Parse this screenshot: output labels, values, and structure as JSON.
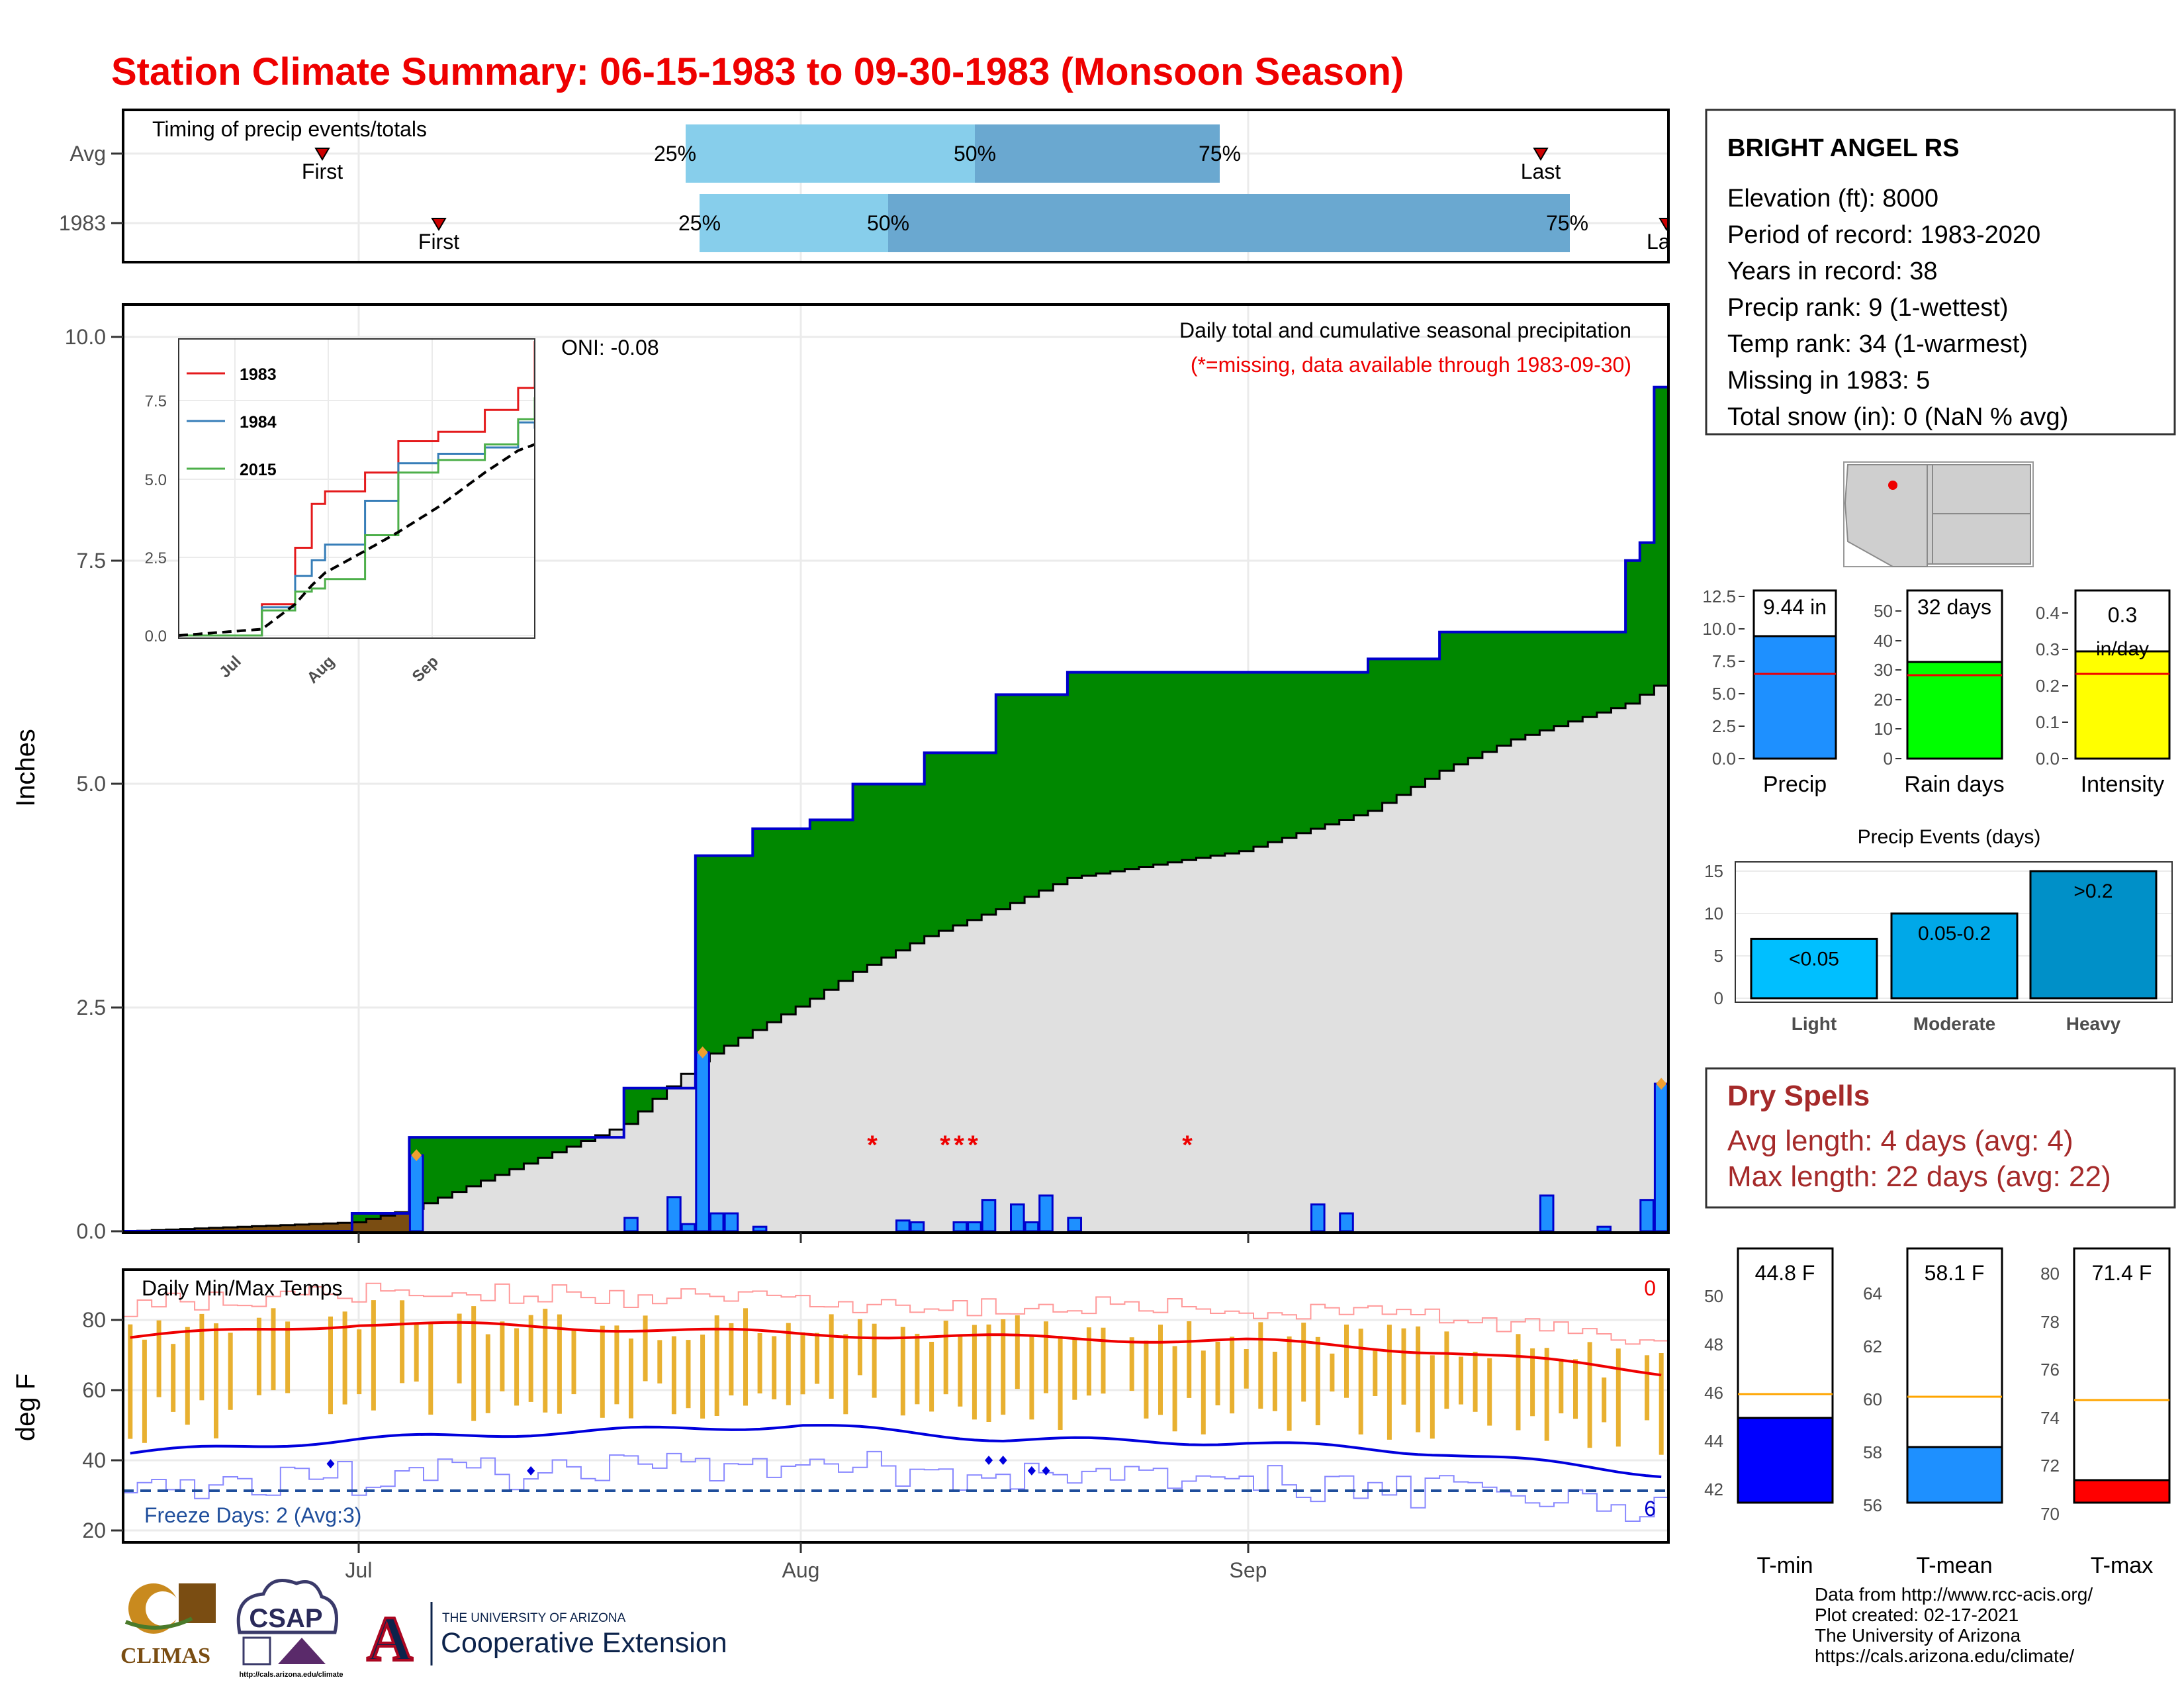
{
  "title": "Station Climate Summary: 06-15-1983 to 09-30-1983 (Monsoon Season)",
  "colors": {
    "title": "#ee0000",
    "precip_fill": "#008800",
    "avg_fill": "#e0e0e0",
    "early_fill": "#7a4d12",
    "bar_blue": "#1e90ff",
    "bar_outline": "#0000cc",
    "marker_orange": "#f0a030",
    "q_light": "#87ceeb",
    "q_dark": "#6aa8d0",
    "tmax_line": "#ee0000",
    "tmin_line": "#0000dd",
    "range_bar": "#e8b030",
    "dry_spell_title": "#a52a2a"
  },
  "timing_panel": {
    "label": "Timing of precip events/totals",
    "row_labels": [
      "Avg",
      "1983"
    ],
    "avg": {
      "first": "First",
      "p25": "25%",
      "p50": "50%",
      "p75": "75%",
      "last": "Last"
    },
    "y1983": {
      "first": "First",
      "p25": "25%",
      "p50": "50%",
      "p75": "75%",
      "last": "La"
    }
  },
  "main_chart": {
    "ylabel": "Inches",
    "yticks": [
      "0.0",
      "2.5",
      "5.0",
      "7.5",
      "10.0"
    ],
    "oni": "ONI: -0.08",
    "caption": "Daily total and cumulative seasonal precipitation",
    "missing_note": "(*=missing, data available through 1983-09-30)",
    "missing_marker": "*",
    "xticks": [
      "Jul",
      "Aug",
      "Sep"
    ]
  },
  "inset": {
    "yticks": [
      "0.0",
      "2.5",
      "5.0",
      "7.5"
    ],
    "xticks": [
      "Jul",
      "Aug",
      "Sep"
    ],
    "legend": [
      "1983",
      "1984",
      "2015"
    ]
  },
  "temp_panel": {
    "label": "Daily Min/Max Temps",
    "ylabel": "deg F",
    "yticks": [
      "20",
      "40",
      "60",
      "80"
    ],
    "xticks": [
      "Jul",
      "Aug",
      "Sep"
    ],
    "freeze_note": "Freeze Days: 2 (Avg:3)",
    "count_top": "0",
    "count_bottom": "6"
  },
  "station": {
    "name": "BRIGHT ANGEL RS",
    "lines": [
      "Elevation (ft): 8000",
      "Period of record: 1983-2020",
      "Years in record: 38",
      "Precip rank: 9 (1-wettest)",
      "Temp rank: 34 (1-warmest)",
      "Missing in 1983: 5",
      "Total snow (in): 0 (NaN % avg)"
    ]
  },
  "mini_bars": {
    "precip": {
      "label": "Precip",
      "value": "9.44 in",
      "yticks": [
        "0.0",
        "2.5",
        "5.0",
        "7.5",
        "10.0",
        "12.5"
      ]
    },
    "rain_days": {
      "label": "Rain days",
      "value": "32 days",
      "yticks": [
        "0",
        "10",
        "20",
        "30",
        "40",
        "50"
      ]
    },
    "intensity": {
      "label": "Intensity",
      "value": "0.3",
      "value2": "in/day",
      "yticks": [
        "0.0",
        "0.1",
        "0.2",
        "0.3",
        "0.4"
      ]
    }
  },
  "precip_events": {
    "title": "Precip Events (days)",
    "yticks": [
      "0",
      "5",
      "10",
      "15"
    ],
    "bars": [
      {
        "category": "Light",
        "label": "<0.05",
        "value": 7,
        "color": "#00bfff"
      },
      {
        "category": "Moderate",
        "label": "0.05-0.2",
        "value": 10,
        "color": "#00a8e8"
      },
      {
        "category": "Heavy",
        "label": ">0.2",
        "value": 15,
        "color": "#0090c8"
      }
    ]
  },
  "dry_spells": {
    "title": "Dry Spells",
    "avg": "Avg length: 4 days (avg: 4)",
    "max": "Max length: 22 days (avg: 22)"
  },
  "temp_bars": {
    "tmin": {
      "label": "T-min",
      "value": "44.8 F",
      "yticks": [
        "42",
        "44",
        "46",
        "48",
        "50"
      ],
      "color": "#0000ff"
    },
    "tmean": {
      "label": "T-mean",
      "value": "58.1 F",
      "yticks": [
        "56",
        "58",
        "60",
        "62",
        "64"
      ],
      "color": "#1e90ff"
    },
    "tmax": {
      "label": "T-max",
      "value": "71.4 F",
      "yticks": [
        "70",
        "72",
        "74",
        "76",
        "78",
        "80"
      ],
      "color": "#ff0000"
    }
  },
  "credits": [
    "Data from http://www.rcc-acis.org/",
    "Plot created: 02-17-2021",
    "The University of Arizona",
    "https://cals.arizona.edu/climate/"
  ],
  "logos": {
    "climas": "CLIMAS",
    "csap": "CSAP",
    "csap_url": "http://cals.arizona.edu/climate",
    "ua_top": "THE UNIVERSITY OF ARIZONA",
    "ua_bottom": "Cooperative Extension",
    "ua_letter": "A"
  },
  "chart_data": [
    {
      "type": "area",
      "id": "cumulative-precip",
      "xlabel": "",
      "ylabel": "Inches",
      "ylim": [
        0,
        10.4
      ],
      "x": [
        "1983-06-15",
        "1983-07-01",
        "1983-07-05",
        "1983-07-20",
        "1983-07-25",
        "1983-07-29",
        "1983-08-02",
        "1983-08-05",
        "1983-08-10",
        "1983-08-15",
        "1983-08-20",
        "1983-09-01",
        "1983-09-10",
        "1983-09-15",
        "1983-09-20",
        "1983-09-28",
        "1983-09-29",
        "1983-09-30"
      ],
      "series": [
        {
          "name": "1983",
          "values": [
            0.0,
            0.2,
            1.05,
            1.6,
            4.2,
            4.5,
            4.6,
            5.0,
            5.35,
            6.0,
            6.25,
            6.25,
            6.4,
            6.7,
            6.7,
            7.5,
            7.7,
            9.44
          ]
        },
        {
          "name": "",
          "values": [
            0.0,
            0.1,
            0.25,
            1.2,
            1.9,
            2.25,
            2.6,
            2.9,
            3.3,
            3.6,
            3.95,
            4.25,
            4.7,
            5.15,
            5.5,
            5.9,
            6.0,
            6.1
          ]
        }
      ]
    },
    {
      "type": "bar",
      "id": "daily-precip",
      "xlabel": "",
      "ylabel": "Inches",
      "x": [
        "1983-07-05",
        "1983-07-20",
        "1983-07-23",
        "1983-07-24",
        "1983-07-25",
        "1983-07-26",
        "1983-07-27",
        "1983-07-29",
        "1983-08-08",
        "1983-08-09",
        "1983-08-12",
        "1983-08-13",
        "1983-08-14",
        "1983-08-16",
        "1983-08-17",
        "1983-08-18",
        "1983-08-20",
        "1983-09-06",
        "1983-09-08",
        "1983-09-22",
        "1983-09-26",
        "1983-09-29",
        "1983-09-30"
      ],
      "values": [
        0.85,
        0.15,
        0.38,
        0.08,
        2.0,
        0.2,
        0.2,
        0.05,
        0.12,
        0.1,
        0.1,
        0.1,
        0.35,
        0.3,
        0.1,
        0.4,
        0.15,
        0.3,
        0.2,
        0.4,
        0.05,
        0.35,
        1.65
      ]
    },
    {
      "type": "line",
      "id": "inset-years",
      "xlabel": "",
      "ylabel": "",
      "ylim": [
        0,
        9.5
      ],
      "x": [
        "1983-06-15",
        "1983-07-10",
        "1983-07-20",
        "1983-07-25",
        "1983-07-29",
        "1983-08-10",
        "1983-08-20",
        "1983-09-01",
        "1983-09-15",
        "1983-09-25",
        "1983-09-30"
      ],
      "series": [
        {
          "name": "1983",
          "values": [
            0.0,
            1.0,
            2.8,
            4.2,
            4.6,
            5.2,
            6.2,
            6.5,
            7.2,
            7.9,
            9.4
          ]
        },
        {
          "name": "1984",
          "values": [
            0.0,
            0.9,
            1.9,
            2.4,
            2.9,
            4.3,
            5.5,
            5.8,
            6.0,
            6.8,
            6.6
          ]
        },
        {
          "name": "2015",
          "values": [
            0.0,
            0.8,
            1.4,
            1.5,
            1.8,
            3.2,
            5.2,
            5.6,
            6.1,
            6.9,
            7.6
          ]
        },
        {
          "name": "",
          "values": [
            0.0,
            0.2,
            1.0,
            1.6,
            2.0,
            2.7,
            3.3,
            4.1,
            5.2,
            5.9,
            6.1
          ]
        }
      ]
    },
    {
      "type": "line",
      "id": "daily-temps",
      "xlabel": "",
      "ylabel": "deg F",
      "ylim": [
        17,
        95
      ],
      "x": [
        "1983-06-15",
        "1983-07-01",
        "1983-07-15",
        "1983-08-01",
        "1983-08-15",
        "1983-09-01",
        "1983-09-15",
        "1983-09-30"
      ],
      "series": [
        {
          "name": "",
          "values": [
            75,
            79,
            78,
            76,
            75,
            74,
            71,
            65
          ]
        },
        {
          "name": "",
          "values": [
            42,
            46,
            48,
            50,
            46,
            45,
            42,
            36
          ]
        }
      ]
    },
    {
      "type": "bar",
      "id": "precip-events",
      "categories": [
        "Light",
        "Moderate",
        "Heavy"
      ],
      "values": [
        7,
        10,
        15
      ],
      "ylim": [
        0,
        16
      ],
      "title": "Precip Events (days)"
    },
    {
      "type": "bar",
      "id": "season-summary",
      "categories": [
        "Precip",
        "Rain days",
        "Intensity"
      ],
      "values": [
        9.44,
        32,
        0.3
      ]
    },
    {
      "type": "bar",
      "id": "temperature-summary",
      "categories": [
        "T-min",
        "T-mean",
        "T-max"
      ],
      "values": [
        44.8,
        58.1,
        71.4
      ]
    }
  ]
}
